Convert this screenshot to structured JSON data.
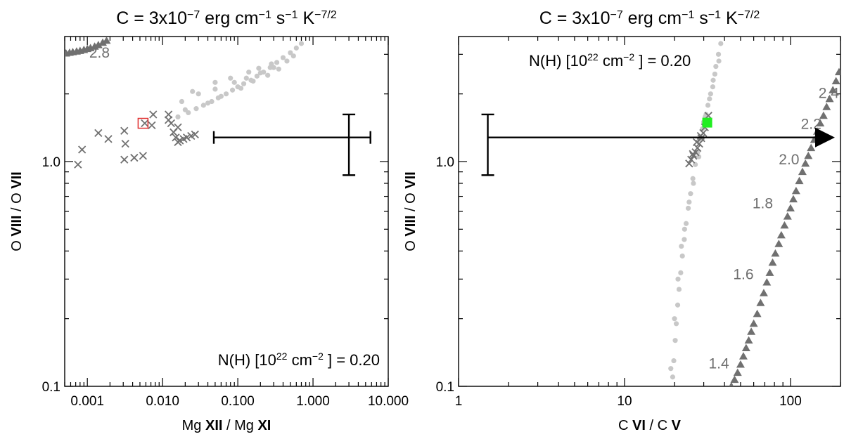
{
  "colors": {
    "dark_series": "#707070",
    "light_series": "#c8c8c8",
    "highlight_left": "#e03030",
    "highlight_right": "#22ee22",
    "axis": "#000000"
  },
  "chart_data": [
    {
      "type": "scatter",
      "title": "C = 3x10<sup>−7</sup> erg cm<sup>−1</sup> s<sup>−1</sup> K<sup>−7/2</sup>",
      "title_parts": [
        "C = 3x10",
        "−7",
        " erg cm",
        "−1",
        " s",
        "−1",
        " K",
        "−7/2"
      ],
      "xlabel_parts": [
        "Mg ",
        "XII",
        " / Mg ",
        "XI"
      ],
      "ylabel_parts": [
        "O ",
        "VIII",
        " / O ",
        "VII"
      ],
      "xscale": "log",
      "yscale": "log",
      "xlim": [
        0.0005,
        10
      ],
      "ylim": [
        0.1,
        3.6
      ],
      "xticks": [
        0.001,
        0.01,
        0.1,
        1,
        10
      ],
      "xtick_labels": [
        "0.001",
        "0.010",
        "0.100",
        "1.000",
        "10.000"
      ],
      "yticks": [
        0.1,
        1.0
      ],
      "ytick_labels": [
        "0.1",
        "1.0"
      ],
      "annotation": {
        "parts": [
          "N(H) [10",
          "22",
          " cm",
          "−2",
          " ] = 0.20"
        ],
        "placement": "bottom-right"
      },
      "series": [
        {
          "marker": "triangle",
          "color": "dark",
          "x": [
            0.00052,
            0.00058,
            0.00064,
            0.00072,
            0.0008,
            0.0009,
            0.001,
            0.0011,
            0.00125,
            0.0014,
            0.0016,
            0.0018
          ],
          "y": [
            3.03,
            3.05,
            3.07,
            3.09,
            3.11,
            3.14,
            3.17,
            3.2,
            3.25,
            3.3,
            3.38,
            3.45
          ]
        },
        {
          "marker": "dot",
          "color": "light",
          "x": [
            0.016,
            0.022,
            0.028,
            0.035,
            0.045,
            0.055,
            0.07,
            0.085,
            0.1,
            0.12,
            0.15,
            0.18,
            0.22,
            0.27,
            0.33,
            0.4,
            0.5,
            0.6,
            0.7,
            0.018,
            0.03,
            0.05,
            0.09,
            0.13,
            0.2,
            0.3,
            0.45,
            0.55,
            0.02,
            0.04,
            0.06,
            0.11,
            0.16,
            0.25,
            0.35,
            0.025,
            0.05,
            0.08,
            0.14,
            0.19,
            0.28
          ],
          "y": [
            1.58,
            1.65,
            1.72,
            1.78,
            1.85,
            1.92,
            2.0,
            2.08,
            2.15,
            2.22,
            2.3,
            2.4,
            2.5,
            2.62,
            2.76,
            2.9,
            3.05,
            3.2,
            3.35,
            1.85,
            2.0,
            2.1,
            2.25,
            2.35,
            2.48,
            2.62,
            2.8,
            2.95,
            1.7,
            1.82,
            1.95,
            2.12,
            2.28,
            2.42,
            2.58,
            2.05,
            2.25,
            2.35,
            2.5,
            2.6,
            2.72
          ]
        },
        {
          "marker": "cross",
          "color": "dark",
          "x": [
            0.00075,
            0.00085,
            0.0014,
            0.0019,
            0.0031,
            0.0032,
            0.0031,
            0.0042,
            0.0055,
            0.0058,
            0.0072,
            0.0075,
            0.012,
            0.012,
            0.013,
            0.014,
            0.015,
            0.016,
            0.017,
            0.019,
            0.021,
            0.024,
            0.027,
            0.016
          ],
          "y": [
            0.97,
            1.13,
            1.34,
            1.26,
            1.37,
            1.2,
            1.02,
            1.04,
            1.06,
            1.48,
            1.45,
            1.62,
            1.62,
            1.53,
            1.48,
            1.35,
            1.28,
            1.22,
            1.24,
            1.26,
            1.28,
            1.3,
            1.32,
            1.42
          ]
        }
      ],
      "highlight": {
        "x": 0.0055,
        "y": 1.48,
        "marker": "open-square",
        "color": "red"
      },
      "curve_labels": [
        {
          "text": "2.8",
          "x": 0.00145,
          "y": 2.9
        }
      ],
      "error_bar": {
        "x": 3.0,
        "y": 1.28,
        "xerr": [
          0.048,
          5.8
        ],
        "yerr": [
          0.87,
          1.62
        ]
      }
    },
    {
      "type": "scatter",
      "title_parts": [
        "C = 3x10",
        "−7",
        " erg cm",
        "−1",
        " s",
        "−1",
        " K",
        "−7/2"
      ],
      "xlabel_parts": [
        "C ",
        "VI",
        " / C ",
        "V"
      ],
      "ylabel_parts": [
        "O ",
        "VIII",
        " / O ",
        "VII"
      ],
      "xscale": "log",
      "yscale": "log",
      "xlim": [
        1,
        200
      ],
      "ylim": [
        0.1,
        3.6
      ],
      "xticks": [
        1,
        10,
        100
      ],
      "xtick_labels": [
        "1",
        "10",
        "100"
      ],
      "yticks": [
        0.1,
        1.0
      ],
      "ytick_labels": [
        "0.1",
        "1.0"
      ],
      "annotation": {
        "parts": [
          "N(H) [10",
          "22",
          " cm",
          "−2",
          " ] = 0.20"
        ],
        "placement": "top-left"
      },
      "series": [
        {
          "marker": "dot",
          "color": "light",
          "x": [
            19.5,
            19.8,
            20.2,
            20.5,
            20.9,
            21.3,
            21.8,
            22.3,
            22.9,
            23.5,
            24.2,
            25.0,
            25.8,
            26.7,
            27.6,
            28.5,
            29.5,
            30.6,
            31.8,
            33.0,
            34.2,
            35.5,
            36.8,
            38.0,
            19.0,
            20.0,
            21.0,
            22.0,
            23.0,
            24.5,
            26.0,
            28.0,
            31.0,
            34.0,
            37.0,
            30.0,
            32.5,
            35.0
          ],
          "y": [
            0.11,
            0.13,
            0.16,
            0.19,
            0.23,
            0.27,
            0.32,
            0.38,
            0.45,
            0.53,
            0.62,
            0.72,
            0.84,
            0.97,
            1.1,
            1.25,
            1.4,
            1.58,
            1.78,
            2.0,
            2.3,
            2.65,
            3.0,
            3.35,
            0.12,
            0.2,
            0.3,
            0.42,
            0.5,
            0.66,
            0.8,
            1.05,
            1.62,
            2.15,
            2.8,
            1.5,
            1.9,
            2.45
          ]
        },
        {
          "marker": "cross",
          "color": "dark",
          "x": [
            24.5,
            25.2,
            26.0,
            26.8,
            27.5,
            28.2,
            29.0,
            29.8,
            30.5,
            31.2,
            32.0,
            25.8,
            27.2,
            28.8
          ],
          "y": [
            0.98,
            1.02,
            1.06,
            1.1,
            1.15,
            1.2,
            1.27,
            1.34,
            1.42,
            1.5,
            1.6,
            1.08,
            1.22,
            1.3
          ]
        },
        {
          "marker": "triangle",
          "color": "dark",
          "x": [
            44,
            46,
            48,
            50,
            52,
            54,
            56,
            58,
            60,
            63,
            66,
            69,
            72,
            75,
            78,
            81,
            85,
            88,
            92,
            96,
            100,
            104,
            108,
            113,
            118,
            123,
            128,
            133,
            139,
            145,
            151,
            158,
            165,
            172,
            180,
            188,
            196
          ],
          "y": [
            0.1,
            0.107,
            0.115,
            0.125,
            0.136,
            0.148,
            0.16,
            0.175,
            0.19,
            0.21,
            0.235,
            0.26,
            0.29,
            0.32,
            0.355,
            0.39,
            0.43,
            0.47,
            0.52,
            0.57,
            0.62,
            0.68,
            0.74,
            0.82,
            0.9,
            0.98,
            1.06,
            1.15,
            1.25,
            1.36,
            1.48,
            1.6,
            1.75,
            1.9,
            2.08,
            2.28,
            2.5
          ]
        }
      ],
      "highlight": {
        "x": 31.5,
        "y": 1.49,
        "marker": "filled-square",
        "color": "green"
      },
      "curve_labels": [
        {
          "text": "2.4",
          "x": 170,
          "y": 1.92
        },
        {
          "text": "2.2",
          "x": 133,
          "y": 1.4
        },
        {
          "text": "2.0",
          "x": 98,
          "y": 0.97
        },
        {
          "text": "1.8",
          "x": 68,
          "y": 0.62
        },
        {
          "text": "1.6",
          "x": 52,
          "y": 0.3
        },
        {
          "text": "1.4",
          "x": 37,
          "y": 0.12
        }
      ],
      "error_bar": {
        "x": 1.5,
        "y": 1.28,
        "yerr": [
          0.87,
          1.62
        ],
        "arrow_to_x": 185
      }
    }
  ]
}
